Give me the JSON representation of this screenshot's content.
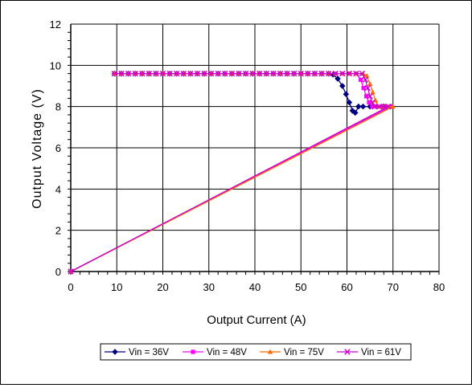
{
  "chart_data": {
    "type": "line",
    "title": "",
    "xlabel": "Output Current (A)",
    "ylabel": "Output Voltage (V)",
    "xlim": [
      0,
      80
    ],
    "ylim": [
      0,
      12
    ],
    "xticks": [
      0,
      10,
      20,
      30,
      40,
      50,
      60,
      70,
      80
    ],
    "yticks": [
      0,
      2,
      4,
      6,
      8,
      10,
      12
    ],
    "grid": true,
    "legend": "bottom",
    "series": [
      {
        "name": "Vin = 36V",
        "color": "#000080",
        "marker": "diamond",
        "points": [
          [
            9.5,
            9.6
          ],
          [
            11,
            9.6
          ],
          [
            12.5,
            9.6
          ],
          [
            14,
            9.6
          ],
          [
            15.5,
            9.6
          ],
          [
            17,
            9.6
          ],
          [
            18.5,
            9.6
          ],
          [
            20,
            9.6
          ],
          [
            21.5,
            9.6
          ],
          [
            23,
            9.6
          ],
          [
            24.5,
            9.6
          ],
          [
            26,
            9.6
          ],
          [
            27.5,
            9.6
          ],
          [
            29,
            9.6
          ],
          [
            30.5,
            9.6
          ],
          [
            32,
            9.6
          ],
          [
            33.5,
            9.6
          ],
          [
            35,
            9.6
          ],
          [
            36.5,
            9.6
          ],
          [
            38,
            9.6
          ],
          [
            39.5,
            9.6
          ],
          [
            41,
            9.6
          ],
          [
            42.5,
            9.6
          ],
          [
            44,
            9.6
          ],
          [
            45.5,
            9.6
          ],
          [
            47,
            9.6
          ],
          [
            48.5,
            9.6
          ],
          [
            50,
            9.6
          ],
          [
            51.5,
            9.6
          ],
          [
            53,
            9.6
          ],
          [
            54.5,
            9.6
          ],
          [
            56,
            9.6
          ],
          [
            57,
            9.55
          ],
          [
            58,
            9.35
          ],
          [
            59,
            9.0
          ],
          [
            59.8,
            8.6
          ],
          [
            60.5,
            8.2
          ],
          [
            61.2,
            7.8
          ],
          [
            61.8,
            7.7
          ],
          [
            62.5,
            8.0
          ],
          [
            63.5,
            8.0
          ],
          [
            65,
            8.0
          ],
          [
            66.5,
            8.0
          ],
          [
            68,
            8.0
          ],
          [
            69.5,
            8.0
          ],
          [
            0,
            0
          ]
        ]
      },
      {
        "name": "Vin = 48V",
        "color": "#ff00ff",
        "marker": "square",
        "points": [
          [
            9.5,
            9.6
          ],
          [
            11,
            9.6
          ],
          [
            12.5,
            9.6
          ],
          [
            14,
            9.6
          ],
          [
            15.5,
            9.6
          ],
          [
            17,
            9.6
          ],
          [
            18.5,
            9.6
          ],
          [
            20,
            9.6
          ],
          [
            21.5,
            9.6
          ],
          [
            23,
            9.6
          ],
          [
            24.5,
            9.6
          ],
          [
            26,
            9.6
          ],
          [
            27.5,
            9.6
          ],
          [
            29,
            9.6
          ],
          [
            30.5,
            9.6
          ],
          [
            32,
            9.6
          ],
          [
            33.5,
            9.6
          ],
          [
            35,
            9.6
          ],
          [
            36.5,
            9.6
          ],
          [
            38,
            9.6
          ],
          [
            39.5,
            9.6
          ],
          [
            41,
            9.6
          ],
          [
            42.5,
            9.6
          ],
          [
            44,
            9.6
          ],
          [
            45.5,
            9.6
          ],
          [
            47,
            9.6
          ],
          [
            48.5,
            9.6
          ],
          [
            50,
            9.6
          ],
          [
            51.5,
            9.6
          ],
          [
            53,
            9.6
          ],
          [
            54.5,
            9.6
          ],
          [
            56,
            9.6
          ],
          [
            57.5,
            9.6
          ],
          [
            59,
            9.6
          ],
          [
            60.5,
            9.6
          ],
          [
            62,
            9.6
          ],
          [
            63,
            9.3
          ],
          [
            63.6,
            8.9
          ],
          [
            64.2,
            8.5
          ],
          [
            64.8,
            8.2
          ],
          [
            65.5,
            8.0
          ],
          [
            66.5,
            8.0
          ],
          [
            67.5,
            8.0
          ],
          [
            68.5,
            8.0
          ],
          [
            69.5,
            8.0
          ],
          [
            0,
            0
          ]
        ]
      },
      {
        "name": "Vin = 75V",
        "color": "#ff6600",
        "marker": "triangle",
        "points": [
          [
            9.5,
            9.6
          ],
          [
            11,
            9.6
          ],
          [
            12.5,
            9.6
          ],
          [
            14,
            9.6
          ],
          [
            15.5,
            9.6
          ],
          [
            17,
            9.6
          ],
          [
            18.5,
            9.6
          ],
          [
            20,
            9.6
          ],
          [
            21.5,
            9.6
          ],
          [
            23,
            9.6
          ],
          [
            24.5,
            9.6
          ],
          [
            26,
            9.6
          ],
          [
            27.5,
            9.6
          ],
          [
            29,
            9.6
          ],
          [
            30.5,
            9.6
          ],
          [
            32,
            9.6
          ],
          [
            33.5,
            9.6
          ],
          [
            35,
            9.6
          ],
          [
            36.5,
            9.6
          ],
          [
            38,
            9.6
          ],
          [
            39.5,
            9.6
          ],
          [
            41,
            9.6
          ],
          [
            42.5,
            9.6
          ],
          [
            44,
            9.6
          ],
          [
            45.5,
            9.6
          ],
          [
            47,
            9.6
          ],
          [
            48.5,
            9.6
          ],
          [
            50,
            9.6
          ],
          [
            51.5,
            9.6
          ],
          [
            53,
            9.6
          ],
          [
            54.5,
            9.6
          ],
          [
            56,
            9.6
          ],
          [
            57.5,
            9.6
          ],
          [
            59,
            9.6
          ],
          [
            60.5,
            9.6
          ],
          [
            62,
            9.6
          ],
          [
            63.5,
            9.6
          ],
          [
            64.3,
            9.5
          ],
          [
            65,
            9.1
          ],
          [
            65.6,
            8.7
          ],
          [
            66.2,
            8.3
          ],
          [
            66.8,
            8.0
          ],
          [
            67.8,
            8.0
          ],
          [
            68.8,
            8.0
          ],
          [
            70,
            8.0
          ],
          [
            0,
            0
          ]
        ]
      },
      {
        "name": "Vin = 61V",
        "color": "#cc00cc",
        "marker": "x",
        "points": [
          [
            9.5,
            9.6
          ],
          [
            11,
            9.6
          ],
          [
            12.5,
            9.6
          ],
          [
            14,
            9.6
          ],
          [
            15.5,
            9.6
          ],
          [
            17,
            9.6
          ],
          [
            18.5,
            9.6
          ],
          [
            20,
            9.6
          ],
          [
            21.5,
            9.6
          ],
          [
            23,
            9.6
          ],
          [
            24.5,
            9.6
          ],
          [
            26,
            9.6
          ],
          [
            27.5,
            9.6
          ],
          [
            29,
            9.6
          ],
          [
            30.5,
            9.6
          ],
          [
            32,
            9.6
          ],
          [
            33.5,
            9.6
          ],
          [
            35,
            9.6
          ],
          [
            36.5,
            9.6
          ],
          [
            38,
            9.6
          ],
          [
            39.5,
            9.6
          ],
          [
            41,
            9.6
          ],
          [
            42.5,
            9.6
          ],
          [
            44,
            9.6
          ],
          [
            45.5,
            9.6
          ],
          [
            47,
            9.6
          ],
          [
            48.5,
            9.6
          ],
          [
            50,
            9.6
          ],
          [
            51.5,
            9.6
          ],
          [
            53,
            9.6
          ],
          [
            54.5,
            9.6
          ],
          [
            56,
            9.6
          ],
          [
            57.5,
            9.6
          ],
          [
            59,
            9.6
          ],
          [
            60.5,
            9.6
          ],
          [
            62,
            9.6
          ],
          [
            63.3,
            9.6
          ],
          [
            64,
            9.3
          ],
          [
            64.5,
            8.9
          ],
          [
            65,
            8.5
          ],
          [
            65.5,
            8.2
          ],
          [
            66,
            8.0
          ],
          [
            67,
            8.0
          ],
          [
            68,
            8.0
          ],
          [
            69,
            8.0
          ],
          [
            0,
            0
          ]
        ]
      }
    ]
  }
}
